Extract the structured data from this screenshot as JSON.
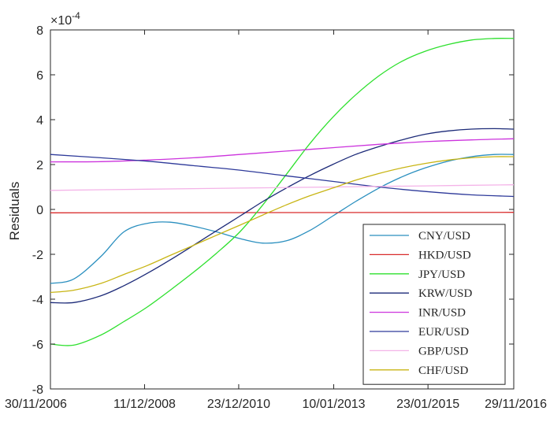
{
  "chart_data": {
    "type": "line",
    "title": "",
    "xlabel": "",
    "ylabel": "Residuals",
    "exponent_label": "×10",
    "exponent_power": "-4",
    "x_ticks": [
      "30/11/2006",
      "11/12/2008",
      "23/12/2010",
      "10/01/2013",
      "23/01/2015",
      "29/11/2016"
    ],
    "x_tick_dates": [
      "2006-11-30",
      "2008-12-11",
      "2010-12-23",
      "2013-01-10",
      "2015-01-23",
      "2016-11-29"
    ],
    "xlim": [
      "2006-11-30",
      "2016-11-29"
    ],
    "y_ticks": [
      "8",
      "6",
      "4",
      "2",
      "0",
      "-2",
      "-4",
      "-6",
      "-8"
    ],
    "ylim": [
      -8,
      8
    ],
    "y_unit_scale": 0.0001,
    "grid": false,
    "legend_position": "bottom-right",
    "series": [
      {
        "name": "CNY/USD",
        "color": "#2a8fbf",
        "x": [
          "2006-11-30",
          "2007-06-01",
          "2008-01-01",
          "2008-07-01",
          "2009-01-01",
          "2009-07-01",
          "2010-01-01",
          "2010-07-01",
          "2011-01-01",
          "2011-07-01",
          "2012-01-01",
          "2012-07-01",
          "2013-01-01",
          "2013-07-01",
          "2014-01-01",
          "2014-07-01",
          "2015-01-01",
          "2015-07-01",
          "2016-01-01",
          "2016-07-01",
          "2016-11-29"
        ],
        "y": [
          -3.3,
          -3.1,
          -2.1,
          -1.0,
          -0.62,
          -0.57,
          -0.75,
          -1.0,
          -1.3,
          -1.5,
          -1.4,
          -0.95,
          -0.3,
          0.35,
          0.95,
          1.45,
          1.85,
          2.15,
          2.35,
          2.45,
          2.45
        ]
      },
      {
        "name": "HKD/USD",
        "color": "#d92b2b",
        "x": [
          "2006-11-30",
          "2016-11-29"
        ],
        "y": [
          -0.15,
          -0.13
        ]
      },
      {
        "name": "JPY/USD",
        "color": "#2ee02e",
        "x": [
          "2006-11-30",
          "2007-06-01",
          "2008-01-01",
          "2008-07-01",
          "2009-01-01",
          "2009-07-01",
          "2010-01-01",
          "2010-07-01",
          "2011-01-01",
          "2011-07-01",
          "2012-01-01",
          "2012-07-01",
          "2013-01-01",
          "2013-07-01",
          "2014-01-01",
          "2014-07-01",
          "2015-01-01",
          "2015-07-01",
          "2016-01-01",
          "2016-07-01",
          "2016-11-29"
        ],
        "y": [
          -6.0,
          -6.05,
          -5.6,
          -5.0,
          -4.35,
          -3.6,
          -2.8,
          -1.95,
          -1.0,
          0.2,
          1.55,
          2.9,
          4.1,
          5.1,
          5.95,
          6.6,
          7.05,
          7.35,
          7.55,
          7.62,
          7.62
        ]
      },
      {
        "name": "KRW/USD",
        "color": "#1c2a78",
        "x": [
          "2006-11-30",
          "2007-06-01",
          "2008-01-01",
          "2008-07-01",
          "2009-01-01",
          "2009-07-01",
          "2010-01-01",
          "2010-07-01",
          "2011-01-01",
          "2011-07-01",
          "2012-01-01",
          "2012-07-01",
          "2013-01-01",
          "2013-07-01",
          "2014-01-01",
          "2014-07-01",
          "2015-01-01",
          "2015-07-01",
          "2016-01-01",
          "2016-07-01",
          "2016-11-29"
        ],
        "y": [
          -4.15,
          -4.15,
          -3.85,
          -3.4,
          -2.85,
          -2.25,
          -1.6,
          -0.95,
          -0.3,
          0.35,
          0.95,
          1.5,
          2.0,
          2.45,
          2.8,
          3.1,
          3.35,
          3.5,
          3.58,
          3.6,
          3.58
        ]
      },
      {
        "name": "INR/USD",
        "color": "#cc33dd",
        "x": [
          "2006-11-30",
          "2008-01-01",
          "2009-01-01",
          "2010-01-01",
          "2011-01-01",
          "2012-01-01",
          "2013-01-01",
          "2014-01-01",
          "2015-01-01",
          "2016-01-01",
          "2016-11-29"
        ],
        "y": [
          2.12,
          2.13,
          2.2,
          2.3,
          2.45,
          2.6,
          2.75,
          2.9,
          3.02,
          3.1,
          3.15
        ]
      },
      {
        "name": "EUR/USD",
        "color": "#2e3a9a",
        "x": [
          "2006-11-30",
          "2008-01-01",
          "2009-01-01",
          "2010-01-01",
          "2011-01-01",
          "2012-01-01",
          "2013-01-01",
          "2014-01-01",
          "2015-01-01",
          "2016-01-01",
          "2016-11-29"
        ],
        "y": [
          2.45,
          2.3,
          2.15,
          1.95,
          1.75,
          1.5,
          1.25,
          1.0,
          0.8,
          0.65,
          0.58
        ]
      },
      {
        "name": "GBP/USD",
        "color": "#f4b3e8",
        "x": [
          "2006-11-30",
          "2009-01-01",
          "2011-01-01",
          "2013-01-01",
          "2015-01-01",
          "2016-11-29"
        ],
        "y": [
          0.85,
          0.9,
          0.95,
          1.0,
          1.05,
          1.1
        ]
      },
      {
        "name": "CHF/USD",
        "color": "#c8b514",
        "x": [
          "2006-11-30",
          "2007-06-01",
          "2008-01-01",
          "2008-07-01",
          "2009-01-01",
          "2009-07-01",
          "2010-01-01",
          "2010-07-01",
          "2011-01-01",
          "2011-07-01",
          "2012-01-01",
          "2012-07-01",
          "2013-01-01",
          "2013-07-01",
          "2014-01-01",
          "2014-07-01",
          "2015-01-01",
          "2015-07-01",
          "2016-01-01",
          "2016-07-01",
          "2016-11-29"
        ],
        "y": [
          -3.7,
          -3.6,
          -3.3,
          -2.9,
          -2.5,
          -2.05,
          -1.6,
          -1.15,
          -0.7,
          -0.25,
          0.2,
          0.6,
          0.95,
          1.3,
          1.6,
          1.85,
          2.05,
          2.2,
          2.3,
          2.35,
          2.35
        ]
      }
    ]
  }
}
